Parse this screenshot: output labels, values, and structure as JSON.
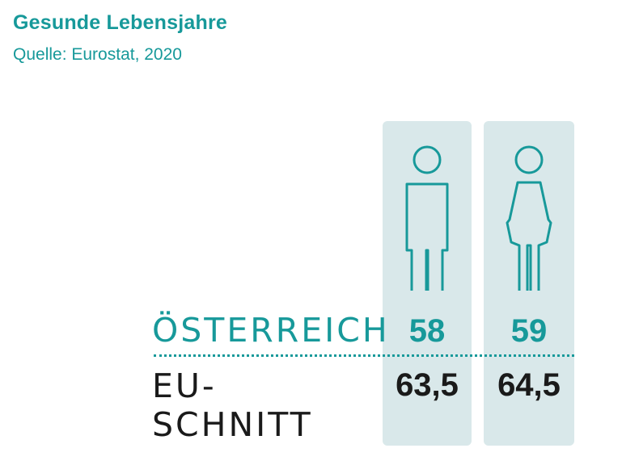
{
  "title": "Gesunde Lebensjahre",
  "subtitle": "Quelle: Eurostat, 2020",
  "colors": {
    "accent": "#17999a",
    "column_bg": "#d9e8ea",
    "text_dark": "#1a1a1a"
  },
  "chart_data": {
    "type": "table",
    "title": "Gesunde Lebensjahre",
    "subtitle": "Quelle: Eurostat, 2020",
    "columns": [
      {
        "icon": "man-icon"
      },
      {
        "icon": "woman-icon"
      }
    ],
    "rows": [
      {
        "label": "ÖSTERREICH",
        "values": [
          "58",
          "59"
        ]
      },
      {
        "label": "EU-SCHNITT",
        "values": [
          "63,5",
          "64,5"
        ]
      }
    ]
  }
}
